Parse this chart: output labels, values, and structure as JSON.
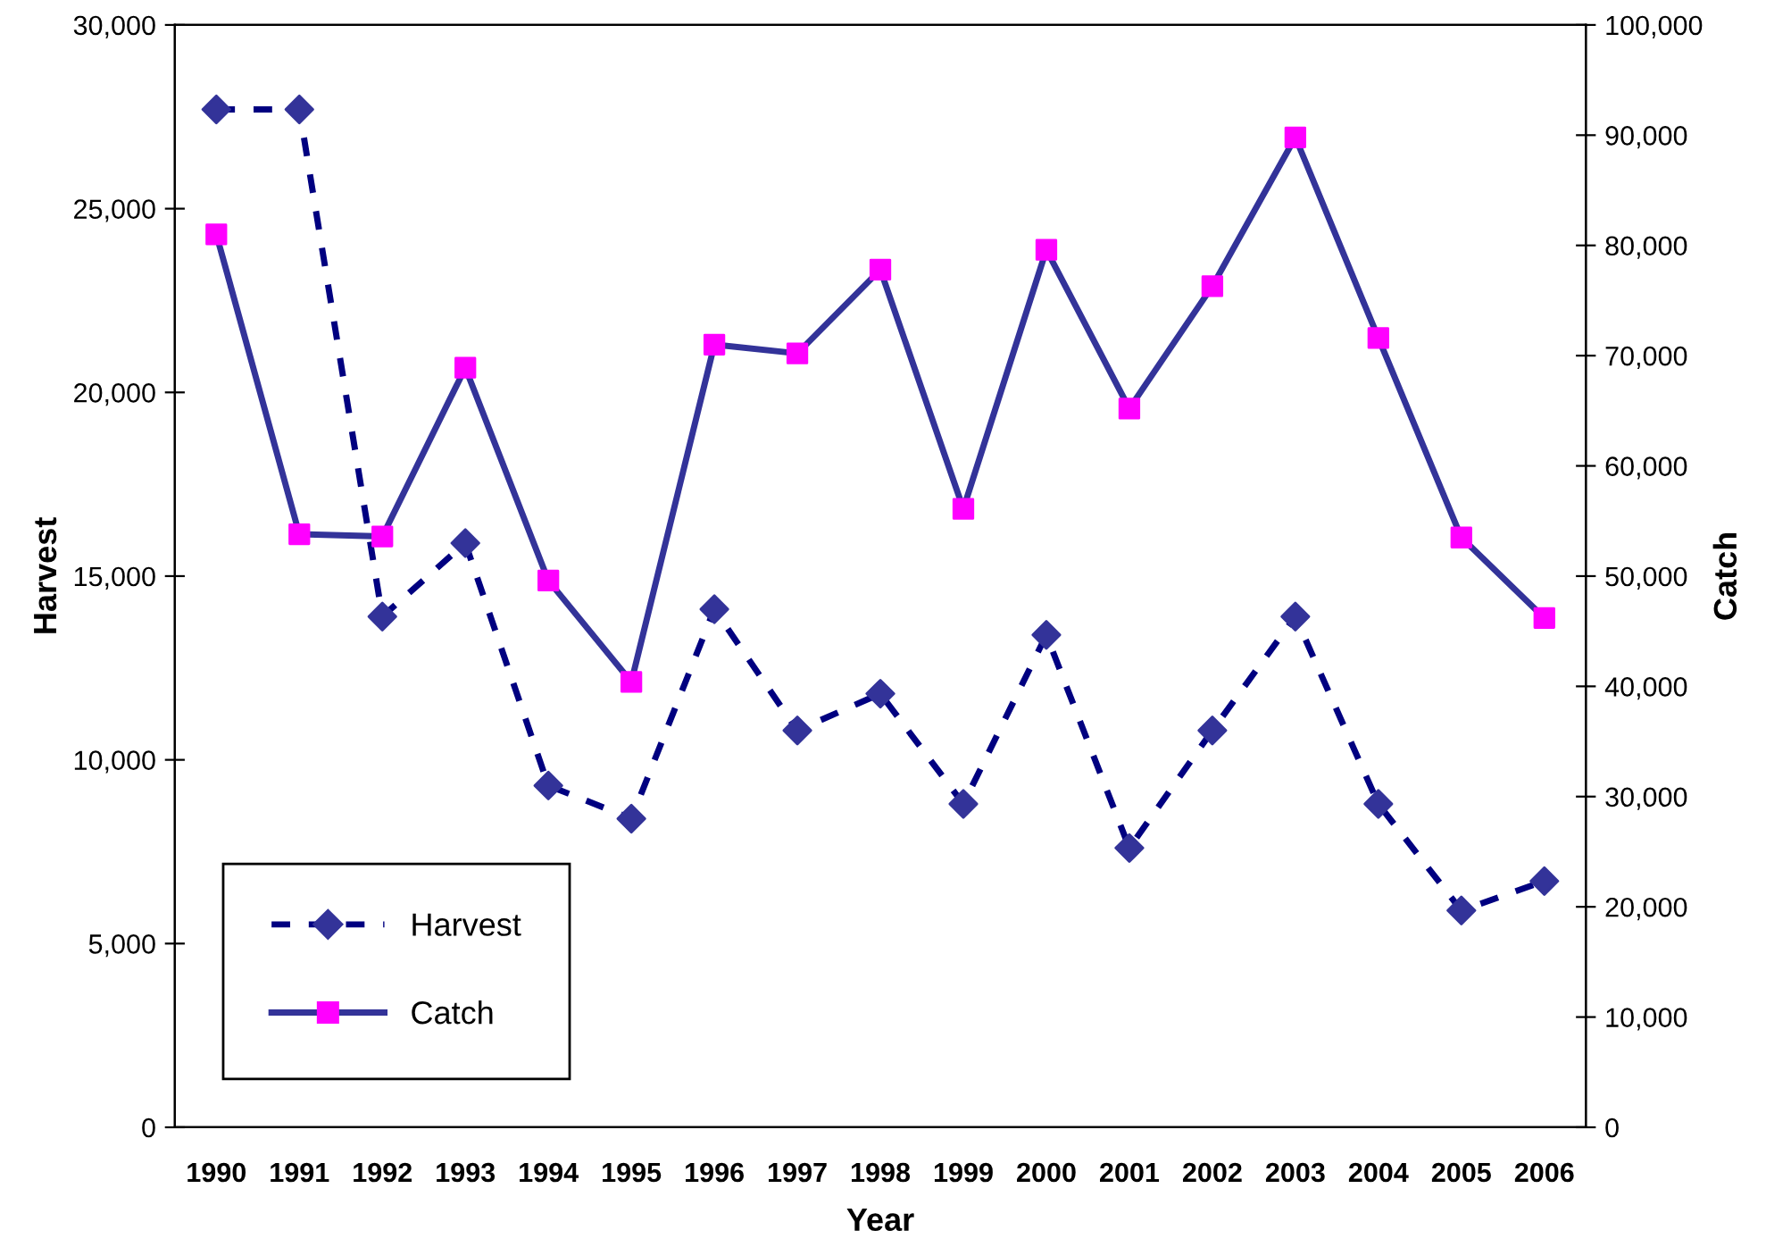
{
  "chart_data": {
    "type": "line",
    "xlabel": "Year",
    "ylabel": "Harvest",
    "y2label": "Catch",
    "categories": [
      "1990",
      "1991",
      "1992",
      "1993",
      "1994",
      "1995",
      "1996",
      "1997",
      "1998",
      "1999",
      "2000",
      "2001",
      "2002",
      "2003",
      "2004",
      "2005",
      "2006"
    ],
    "series": [
      {
        "name": "Harvest",
        "color": "#000080",
        "colors": [
          "#333399",
          "#333399",
          "#333399",
          "#333399",
          "#333399",
          "#333399",
          "#333399",
          "#333399",
          "#333399",
          "#333399",
          "#333399",
          "#333399",
          "#333399",
          "#333399",
          "#333399",
          "#333399",
          "#333399"
        ],
        "marker": "diamond",
        "line_style": "dashed",
        "values": [
          27700,
          27700,
          13900,
          15900,
          9300,
          8400,
          14100,
          10800,
          11800,
          8800,
          13400,
          7600,
          10800,
          13900,
          8800,
          5900,
          6700
        ]
      },
      {
        "name": "Catch",
        "axis": "y2",
        "color": "#333399",
        "colors": [
          "#ff00ff",
          "#ff00ff",
          "#ff00ff",
          "#ff00ff",
          "#ff00ff",
          "#ff00ff",
          "#ff00ff",
          "#ff00ff",
          "#ff00ff",
          "#ff00ff",
          "#ff00ff",
          "#ff00ff",
          "#ff00ff",
          "#ff00ff",
          "#ff00ff",
          "#ff00ff",
          "#ff00ff"
        ],
        "marker": "square",
        "line_style": "solid",
        "values": [
          81000,
          53800,
          53600,
          68900,
          49600,
          40400,
          71000,
          70200,
          77800,
          56100,
          79600,
          65200,
          76300,
          89800,
          71600,
          53500,
          46200
        ]
      }
    ],
    "ylim": [
      0,
      30000
    ],
    "yticks": [
      {
        "value": 0,
        "label": "0"
      },
      {
        "value": 5000,
        "label": "5,000"
      },
      {
        "value": 10000,
        "label": "10,000"
      },
      {
        "value": 15000,
        "label": "15,000"
      },
      {
        "value": 20000,
        "label": "20,000"
      },
      {
        "value": 25000,
        "label": "25,000"
      },
      {
        "value": 30000,
        "label": "30,000"
      }
    ],
    "y2lim": [
      0,
      100000
    ],
    "y2ticks": [
      {
        "value": 0,
        "label": "0"
      },
      {
        "value": 10000,
        "label": "10,000"
      },
      {
        "value": 20000,
        "label": "20,000"
      },
      {
        "value": 30000,
        "label": "30,000"
      },
      {
        "value": 40000,
        "label": "40,000"
      },
      {
        "value": 50000,
        "label": "50,000"
      },
      {
        "value": 60000,
        "label": "60,000"
      },
      {
        "value": 70000,
        "label": "70,000"
      },
      {
        "value": 80000,
        "label": "80,000"
      },
      {
        "value": 90000,
        "label": "90,000"
      },
      {
        "value": 100000,
        "label": "100,000"
      }
    ],
    "grid": false,
    "legend": "bottom left"
  }
}
